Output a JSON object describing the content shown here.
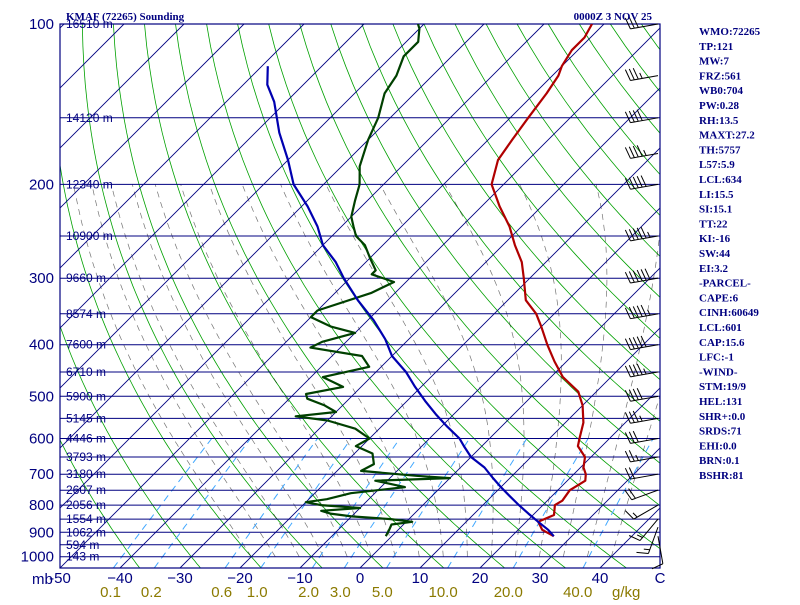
{
  "header": {
    "station_title": "KMAF (72265) Sounding",
    "time_label": "0000Z  3 NOV 25"
  },
  "colors": {
    "frame": "#000080",
    "isobar": "#000080",
    "isotherm": "#000080",
    "dry_adiabat": "#00a000",
    "moist_adiabat": "#000000",
    "mixing_ratio": "#3fa7ff",
    "temperature": "#b00000",
    "dewpoint": "#004000",
    "parcel": "#0000b0",
    "wind_barb": "#000000",
    "mix_label": "#8B7A00",
    "label": "#000080"
  },
  "pressure_labels": [
    {
      "p": 100,
      "text": "100"
    },
    {
      "p": 200,
      "text": "200"
    },
    {
      "p": 300,
      "text": "300"
    },
    {
      "p": 400,
      "text": "400"
    },
    {
      "p": 500,
      "text": "500"
    },
    {
      "p": 600,
      "text": "600"
    },
    {
      "p": 700,
      "text": "700"
    },
    {
      "p": 800,
      "text": "800"
    },
    {
      "p": 900,
      "text": "900"
    },
    {
      "p": 1000,
      "text": "1000"
    }
  ],
  "pressure_unit": "mb",
  "height_labels": [
    {
      "p": 100,
      "text": "16510 m"
    },
    {
      "p": 150,
      "text": "14120 m"
    },
    {
      "p": 200,
      "text": "12340 m"
    },
    {
      "p": 250,
      "text": "10900 m"
    },
    {
      "p": 300,
      "text": "9660 m"
    },
    {
      "p": 350,
      "text": "8574 m"
    },
    {
      "p": 400,
      "text": "7600 m"
    },
    {
      "p": 450,
      "text": "6710 m"
    },
    {
      "p": 500,
      "text": "5900 m"
    },
    {
      "p": 550,
      "text": "5145 m"
    },
    {
      "p": 600,
      "text": "4446 m"
    },
    {
      "p": 650,
      "text": "3793 m"
    },
    {
      "p": 700,
      "text": "3180 m"
    },
    {
      "p": 750,
      "text": "2607 m"
    },
    {
      "p": 800,
      "text": "2056 m"
    },
    {
      "p": 850,
      "text": "1554 m"
    },
    {
      "p": 900,
      "text": "1062 m"
    },
    {
      "p": 950,
      "text": "594 m"
    },
    {
      "p": 1000,
      "text": "143 m"
    }
  ],
  "temp_labels": [
    {
      "t": -50,
      "text": "-50"
    },
    {
      "t": -40,
      "text": "−40"
    },
    {
      "t": -30,
      "text": "−30"
    },
    {
      "t": -20,
      "text": "−20"
    },
    {
      "t": -10,
      "text": "−10"
    },
    {
      "t": 0,
      "text": "0"
    },
    {
      "t": 10,
      "text": "10"
    },
    {
      "t": 20,
      "text": "20"
    },
    {
      "t": 30,
      "text": "30"
    },
    {
      "t": 40,
      "text": "40"
    },
    {
      "t": 50,
      "text": "C"
    }
  ],
  "mixing_labels": [
    {
      "w": 0.1,
      "text": "0.1"
    },
    {
      "w": 0.2,
      "text": "0.2"
    },
    {
      "w": 0.6,
      "text": "0.6"
    },
    {
      "w": 1.0,
      "text": "1.0"
    },
    {
      "w": 2.0,
      "text": "2.0"
    },
    {
      "w": 3.0,
      "text": "3.0"
    },
    {
      "w": 5.0,
      "text": "5.0"
    },
    {
      "w": 10.0,
      "text": "10.0"
    },
    {
      "w": 20.0,
      "text": "20.0"
    },
    {
      "w": 40.0,
      "text": "40.0"
    }
  ],
  "mixing_unit": "g/kg",
  "sidebar": [
    "WMO:72265",
    "TP:121",
    "MW:7",
    "FRZ:561",
    "WB0:704",
    "PW:0.28",
    "RH:13.5",
    "MAXT:27.2",
    "TH:5757",
    "L57:5.9",
    "LCL:634",
    "LI:15.5",
    "SI:15.1",
    "TT:22",
    "KI:-16",
    "SW:44",
    "EI:3.2",
    "-PARCEL-",
    "CAPE:6",
    "CINH:60649",
    "LCL:601",
    "CAP:15.6",
    "LFC:-1",
    "-WIND-",
    "STM:19/9",
    "HEL:131",
    "SHR+:0.0",
    "SRDS:71",
    "EHI:0.0",
    "BRN:0.1",
    "BSHR:81"
  ],
  "chart_data": {
    "type": "line",
    "diagram": "skew-T log-P",
    "xlabel": "C",
    "ylabel": "mb",
    "xlim": [
      -50,
      50
    ],
    "ylim": [
      1050,
      100
    ],
    "y_scale": "log",
    "grid": true,
    "series": [
      {
        "key": "temperature",
        "points": [
          [
            915,
            27
          ],
          [
            890,
            24
          ],
          [
            860,
            22
          ],
          [
            835,
            23.5
          ],
          [
            800,
            22
          ],
          [
            785,
            22.5
          ],
          [
            750,
            22
          ],
          [
            720,
            23
          ],
          [
            700,
            22
          ],
          [
            680,
            20.5
          ],
          [
            650,
            19
          ],
          [
            620,
            16
          ],
          [
            600,
            15
          ],
          [
            560,
            13
          ],
          [
            520,
            10
          ],
          [
            490,
            7
          ],
          [
            460,
            2
          ],
          [
            430,
            -2
          ],
          [
            400,
            -6
          ],
          [
            370,
            -10
          ],
          [
            350,
            -13
          ],
          [
            330,
            -17
          ],
          [
            300,
            -21
          ],
          [
            280,
            -24
          ],
          [
            260,
            -28
          ],
          [
            240,
            -32
          ],
          [
            220,
            -37
          ],
          [
            200,
            -42
          ],
          [
            180,
            -45
          ],
          [
            165,
            -46
          ],
          [
            150,
            -47
          ],
          [
            135,
            -48
          ],
          [
            125,
            -49
          ],
          [
            120,
            -50
          ],
          [
            112,
            -51
          ],
          [
            106,
            -51
          ],
          [
            100,
            -52
          ]
        ]
      },
      {
        "key": "dewpoint",
        "points": [
          [
            915,
            -1
          ],
          [
            890,
            -1.5
          ],
          [
            870,
            -2
          ],
          [
            860,
            1
          ],
          [
            850,
            -3
          ],
          [
            840,
            -10
          ],
          [
            830,
            -14
          ],
          [
            820,
            -16
          ],
          [
            810,
            -10
          ],
          [
            800,
            -17
          ],
          [
            790,
            -20
          ],
          [
            780,
            -17
          ],
          [
            760,
            -14
          ],
          [
            740,
            -6
          ],
          [
            720,
            -12
          ],
          [
            712,
            0
          ],
          [
            705,
            -6
          ],
          [
            690,
            -16
          ],
          [
            670,
            -15
          ],
          [
            640,
            -17
          ],
          [
            620,
            -21
          ],
          [
            600,
            -20
          ],
          [
            575,
            -24
          ],
          [
            555,
            -30
          ],
          [
            545,
            -36
          ],
          [
            535,
            -30
          ],
          [
            520,
            -33
          ],
          [
            505,
            -37
          ],
          [
            495,
            -38
          ],
          [
            480,
            -33
          ],
          [
            460,
            -38
          ],
          [
            440,
            -32
          ],
          [
            420,
            -35
          ],
          [
            405,
            -45
          ],
          [
            395,
            -44
          ],
          [
            380,
            -40
          ],
          [
            370,
            -45
          ],
          [
            355,
            -50
          ],
          [
            345,
            -50
          ],
          [
            320,
            -44
          ],
          [
            305,
            -42
          ],
          [
            295,
            -47
          ],
          [
            290,
            -47
          ],
          [
            275,
            -50
          ],
          [
            260,
            -53
          ],
          [
            250,
            -56
          ],
          [
            240,
            -58
          ],
          [
            230,
            -60
          ],
          [
            215,
            -62
          ],
          [
            200,
            -64
          ],
          [
            185,
            -67
          ],
          [
            165,
            -70
          ],
          [
            150,
            -72
          ],
          [
            135,
            -75
          ],
          [
            125,
            -76
          ],
          [
            115,
            -78
          ],
          [
            108,
            -78
          ],
          [
            102,
            -80
          ],
          [
            100,
            -81
          ]
        ]
      },
      {
        "key": "parcel",
        "points": [
          [
            915,
            27
          ],
          [
            890,
            25
          ],
          [
            860,
            22
          ],
          [
            830,
            19
          ],
          [
            800,
            16
          ],
          [
            770,
            13
          ],
          [
            740,
            10
          ],
          [
            710,
            7
          ],
          [
            680,
            4
          ],
          [
            650,
            0
          ],
          [
            620,
            -3
          ],
          [
            600,
            -5
          ],
          [
            570,
            -9
          ],
          [
            540,
            -13
          ],
          [
            510,
            -17
          ],
          [
            480,
            -21
          ],
          [
            450,
            -25
          ],
          [
            420,
            -30
          ],
          [
            390,
            -34
          ],
          [
            360,
            -39
          ],
          [
            330,
            -45
          ],
          [
            300,
            -51
          ],
          [
            280,
            -55
          ],
          [
            260,
            -60
          ],
          [
            240,
            -64
          ],
          [
            220,
            -69
          ],
          [
            200,
            -75
          ],
          [
            180,
            -80
          ],
          [
            160,
            -86
          ],
          [
            140,
            -92
          ],
          [
            130,
            -96
          ],
          [
            120,
            -99
          ]
        ]
      }
    ],
    "wind_barbs": [
      {
        "p": 915,
        "dir": 170,
        "spd": 10
      },
      {
        "p": 880,
        "dir": 200,
        "spd": 15
      },
      {
        "p": 850,
        "dir": 220,
        "spd": 15
      },
      {
        "p": 800,
        "dir": 240,
        "spd": 15
      },
      {
        "p": 750,
        "dir": 250,
        "spd": 20
      },
      {
        "p": 700,
        "dir": 260,
        "spd": 20
      },
      {
        "p": 650,
        "dir": 260,
        "spd": 25
      },
      {
        "p": 600,
        "dir": 260,
        "spd": 30
      },
      {
        "p": 550,
        "dir": 260,
        "spd": 35
      },
      {
        "p": 500,
        "dir": 260,
        "spd": 40
      },
      {
        "p": 450,
        "dir": 260,
        "spd": 45
      },
      {
        "p": 400,
        "dir": 260,
        "spd": 50
      },
      {
        "p": 350,
        "dir": 260,
        "spd": 55
      },
      {
        "p": 300,
        "dir": 260,
        "spd": 60
      },
      {
        "p": 250,
        "dir": 260,
        "spd": 55
      },
      {
        "p": 200,
        "dir": 260,
        "spd": 50
      },
      {
        "p": 175,
        "dir": 260,
        "spd": 45
      },
      {
        "p": 150,
        "dir": 260,
        "spd": 40
      },
      {
        "p": 125,
        "dir": 260,
        "spd": 35
      },
      {
        "p": 100,
        "dir": 260,
        "spd": 30
      }
    ]
  }
}
